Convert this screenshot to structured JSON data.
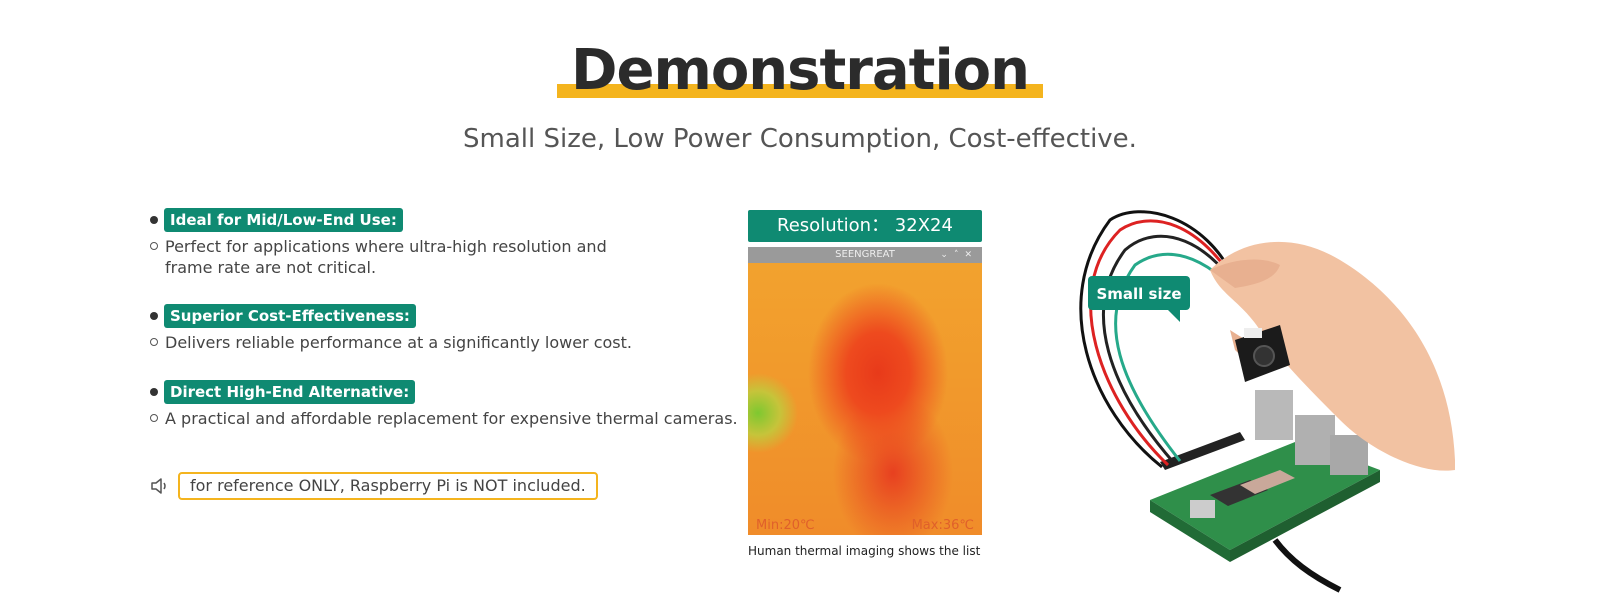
{
  "title": "Demonstration",
  "subtitle": "Small Size, Low Power Consumption, Cost-effective.",
  "features": [
    {
      "tag": "Ideal for Mid/Low-End Use:",
      "desc": "Perfect for applications where ultra-high resolution and frame rate are not critical."
    },
    {
      "tag": "Superior Cost-Effectiveness:",
      "desc": "Delivers reliable performance at a significantly lower cost."
    },
    {
      "tag": "Direct High-End Alternative:",
      "desc": "A practical and affordable replacement for expensive thermal cameras."
    }
  ],
  "notice": "for reference ONLY, Raspberry Pi is NOT included.",
  "resolution_label": "Resolution： 32X24",
  "window": {
    "title": "SEENGREAT",
    "min_temp": "Min:20℃",
    "max_temp": "Max:36℃"
  },
  "caption": "Human thermal imaging shows the list",
  "photo": {
    "badge": "Small size"
  },
  "colors": {
    "accent_teal": "#0f8a72",
    "accent_yellow": "#f4b41e"
  }
}
